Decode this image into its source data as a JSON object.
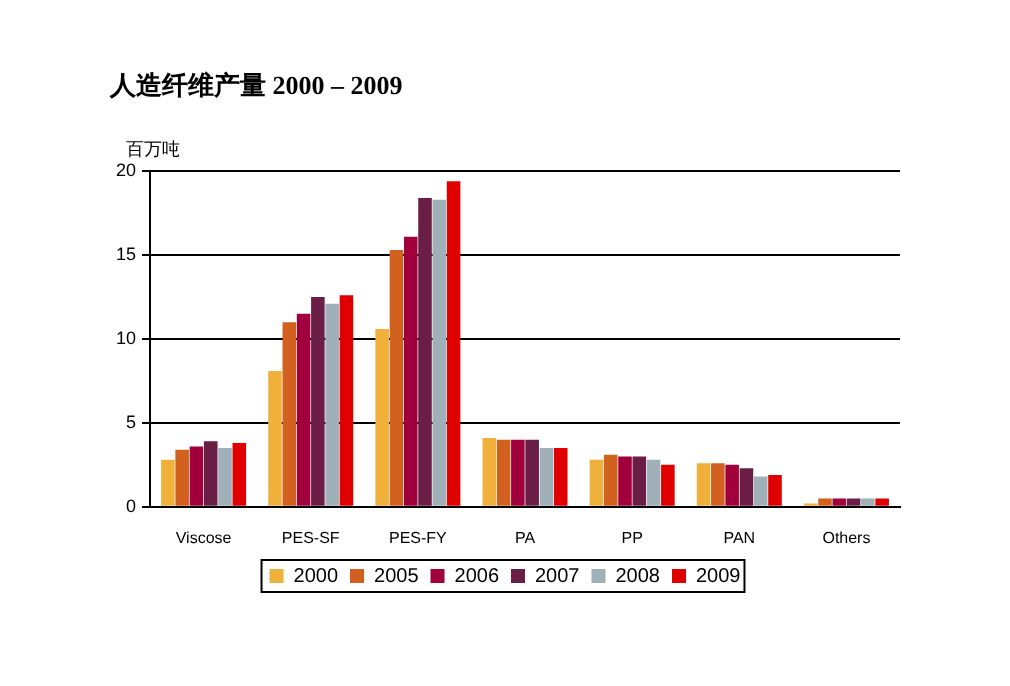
{
  "chart_data": {
    "type": "bar",
    "title": "人造纤维产量 2000 – 2009",
    "ylabel": "百万吨",
    "categories": [
      "Viscose",
      "PES-SF",
      "PES-FY",
      "PA",
      "PP",
      "PAN",
      "Others"
    ],
    "series": [
      {
        "name": "2000",
        "color": "#f0b03c",
        "values": [
          2.8,
          8.1,
          10.6,
          4.1,
          2.8,
          2.6,
          0.2
        ]
      },
      {
        "name": "2005",
        "color": "#d2601e",
        "values": [
          3.4,
          11.0,
          15.3,
          4.0,
          3.1,
          2.6,
          0.5
        ]
      },
      {
        "name": "2006",
        "color": "#a0003c",
        "values": [
          3.6,
          11.5,
          16.1,
          4.0,
          3.0,
          2.5,
          0.5
        ]
      },
      {
        "name": "2007",
        "color": "#6a1e46",
        "values": [
          3.9,
          12.5,
          18.4,
          4.0,
          3.0,
          2.3,
          0.5
        ]
      },
      {
        "name": "2008",
        "color": "#a0b0b8",
        "values": [
          3.5,
          12.1,
          18.3,
          3.5,
          2.8,
          1.8,
          0.5
        ]
      },
      {
        "name": "2009",
        "color": "#e00000",
        "values": [
          3.8,
          12.6,
          19.4,
          3.5,
          2.5,
          1.9,
          0.5
        ]
      }
    ],
    "ylim": [
      0,
      20
    ],
    "yticks": [
      0,
      5,
      10,
      15,
      20
    ],
    "grid": "y",
    "legend": "bottom"
  }
}
